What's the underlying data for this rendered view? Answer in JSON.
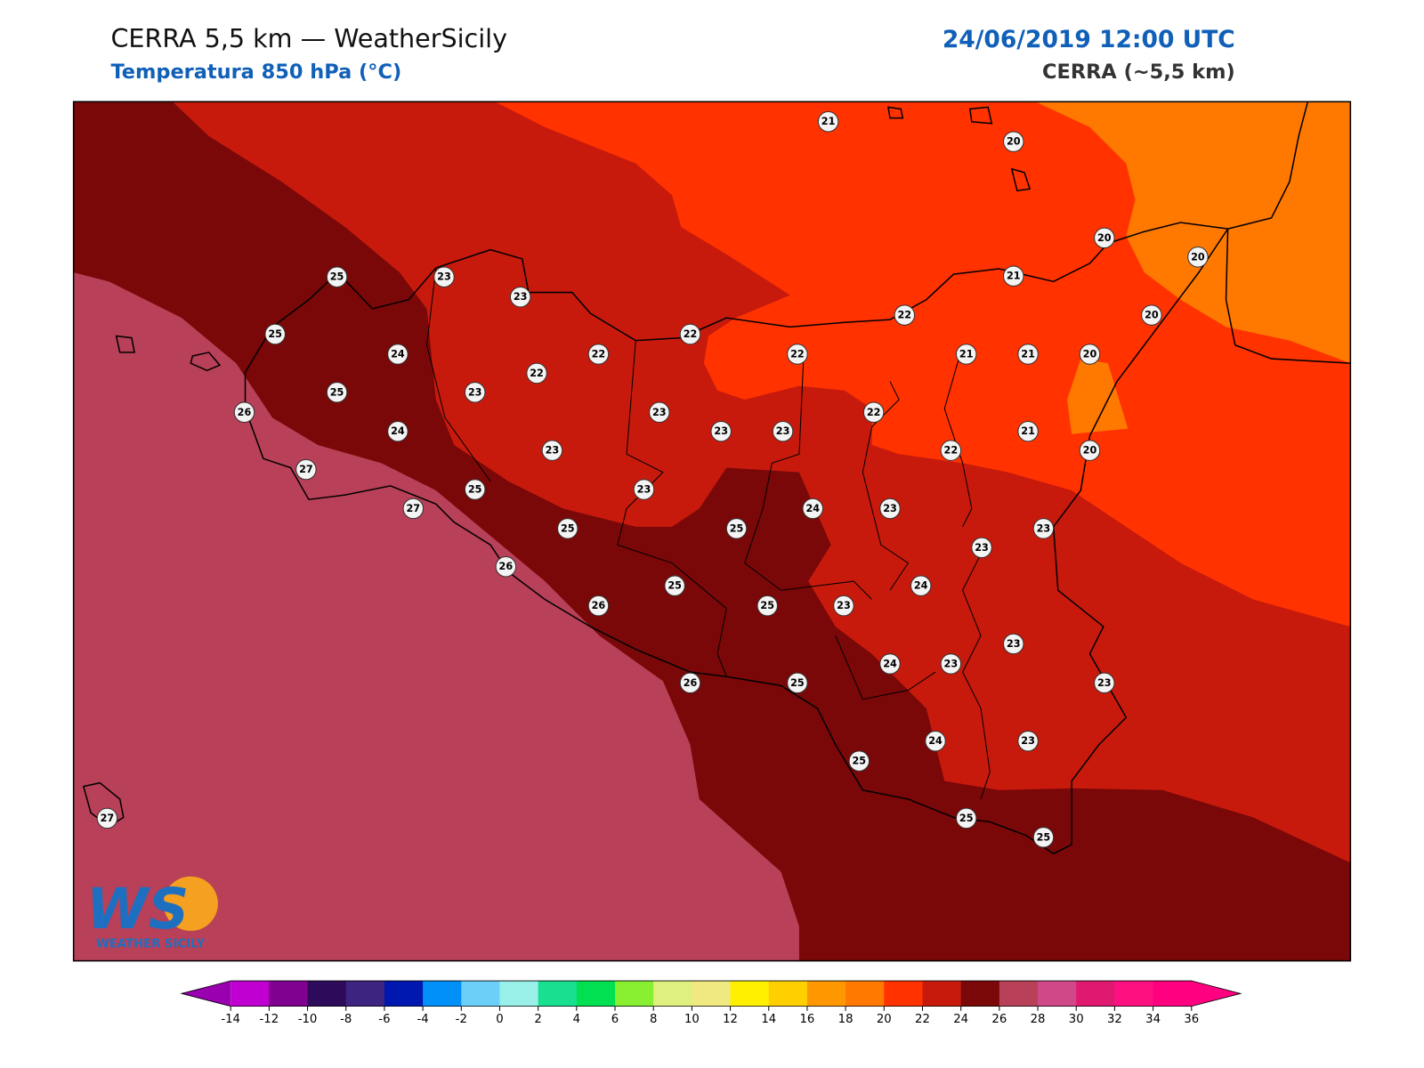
{
  "header": {
    "title": "CERRA 5,5 km — WeatherSicily",
    "subtitle": "Temperatura 850 hPa (°C)",
    "date": "24/06/2019 12:00 UTC",
    "model": "CERRA (~5,5 km)"
  },
  "logo": {
    "mark": "WS",
    "name": "WEATHER SICILY"
  },
  "stations": [
    21,
    20,
    20,
    20,
    21,
    22,
    20,
    25,
    23,
    23,
    25,
    24,
    22,
    22,
    22,
    21,
    21,
    20,
    22,
    25,
    23,
    26,
    23,
    22,
    24,
    23,
    23,
    21,
    23,
    22,
    20,
    27,
    25,
    23,
    27,
    24,
    23,
    25,
    25,
    23,
    23,
    26,
    25,
    24,
    26,
    25,
    23,
    23,
    24,
    23,
    26,
    25,
    23,
    24,
    23,
    25,
    25,
    25,
    27
  ],
  "colorbar": {
    "ticks": [
      -14,
      -12,
      -10,
      -8,
      -6,
      -4,
      -2,
      0,
      2,
      4,
      6,
      8,
      10,
      12,
      14,
      16,
      18,
      20,
      22,
      24,
      26,
      28,
      30,
      32,
      34,
      36
    ],
    "colors": [
      "#c000d0",
      "#800090",
      "#2e0a5a",
      "#3c2480",
      "#0018b0",
      "#0090f8",
      "#6ccff8",
      "#98f0e8",
      "#18e090",
      "#00e050",
      "#88f030",
      "#e0f080",
      "#f0e880",
      "#fff000",
      "#ffd000",
      "#ff9800",
      "#ff7800",
      "#ff3200",
      "#c81a0c",
      "#7a0808",
      "#b84058",
      "#d04888",
      "#e01870",
      "#ff1080",
      "#ff0080"
    ],
    "under": "#9a00b0",
    "over": "#ff0080"
  }
}
